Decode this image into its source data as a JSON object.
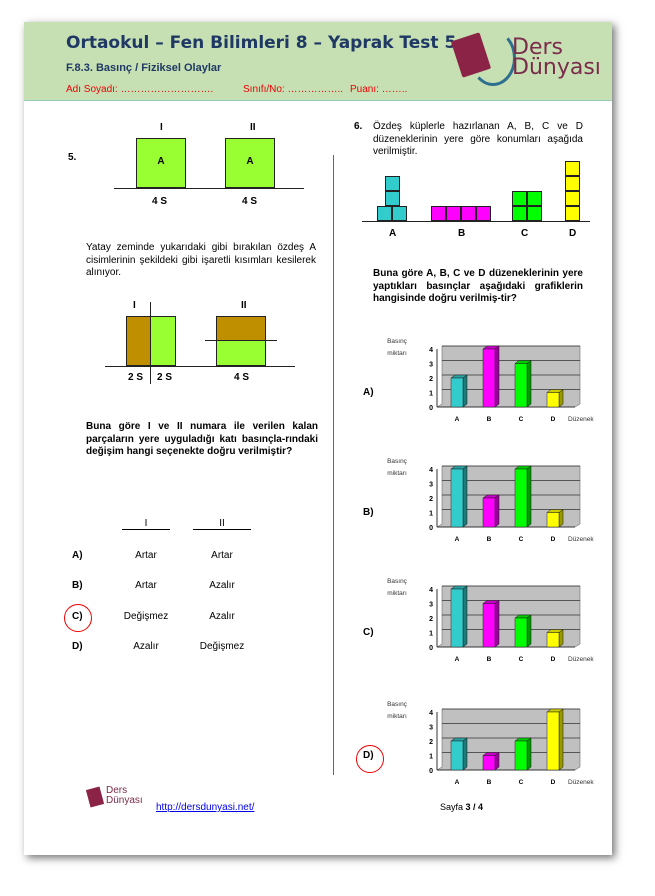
{
  "header": {
    "title": "Ortaokul – Fen Bilimleri 8 – Yaprak Test 5",
    "subtitle": "F.8.3. Basınç / Fiziksel Olaylar",
    "name_field": "Adı Soyadı: ……………………….",
    "class_field": "Sınıfı/No: ……………..",
    "score_field": "Puanı: ……..",
    "logo_line1": "Ders",
    "logo_line2": "Dünyası"
  },
  "q5": {
    "number": "5.",
    "fig1": {
      "label_I": "I",
      "label_II": "II",
      "block": "A",
      "area_I": "4 S",
      "area_II": "4 S"
    },
    "text": "Yatay zeminde yukarıdaki gibi bırakılan özdeş A cisimlerinin şekildeki gibi işaretli kısımları kesilerek alınıyor.",
    "fig2": {
      "label_I": "I",
      "label_II": "II",
      "area_I_left": "2 S",
      "area_I_right": "2 S",
      "area_II": "4 S"
    },
    "question": "Buna göre I ve II numara ile verilen kalan parçaların yere uyguladığı katı basınçla-rındaki değişim hangi seçenekte doğru verilmiştir?",
    "col_I": "I",
    "col_II": "II",
    "options": [
      {
        "letter": "A)",
        "I": "Artar",
        "II": "Artar"
      },
      {
        "letter": "B)",
        "I": "Artar",
        "II": "Azalır"
      },
      {
        "letter": "C)",
        "I": "Değişmez",
        "II": "Azalır"
      },
      {
        "letter": "D)",
        "I": "Azalır",
        "II": "Değişmez"
      }
    ],
    "marked_answer": "C)"
  },
  "q6": {
    "number": "6.",
    "text": "Özdeş küplerle hazırlanan A, B, C ve D düzeneklerinin yere göre konumları aşağıda verilmiştir.",
    "setups": [
      "A",
      "B",
      "C",
      "D"
    ],
    "question": "Buna göre A, B, C ve D düzeneklerinin yere yaptıkları basınçlar aşağıdaki grafiklerin hangisinde doğru verilmiş-tir?",
    "marked_answer": "D)"
  },
  "chart_data": [
    {
      "option": "A)",
      "type": "bar",
      "ylabel": "Basınç miktarı",
      "xlabel": "Düzenek",
      "categories": [
        "A",
        "B",
        "C",
        "D"
      ],
      "values": [
        2,
        4,
        3,
        1
      ],
      "ylim": [
        0,
        4
      ],
      "yticks": [
        "0",
        "1",
        "2",
        "3",
        "4"
      ],
      "grid": true
    },
    {
      "option": "B)",
      "type": "bar",
      "ylabel": "Basınç miktarı",
      "xlabel": "Düzenek",
      "categories": [
        "A",
        "B",
        "C",
        "D"
      ],
      "values": [
        4,
        2,
        4,
        1
      ],
      "ylim": [
        0,
        4
      ],
      "yticks": [
        "0",
        "1",
        "2",
        "3",
        "4"
      ],
      "grid": true
    },
    {
      "option": "C)",
      "type": "bar",
      "ylabel": "Basınç miktarı",
      "xlabel": "Düzenek",
      "categories": [
        "A",
        "B",
        "C",
        "D"
      ],
      "values": [
        4,
        3,
        2,
        1
      ],
      "ylim": [
        0,
        4
      ],
      "yticks": [
        "0",
        "1",
        "2",
        "3",
        "4"
      ],
      "grid": true
    },
    {
      "option": "D)",
      "type": "bar",
      "ylabel": "Basınç miktarı",
      "xlabel": "Düzenek",
      "categories": [
        "A",
        "B",
        "C",
        "D"
      ],
      "values": [
        2,
        1,
        2,
        4
      ],
      "ylim": [
        0,
        4
      ],
      "yticks": [
        "0",
        "1",
        "2",
        "3",
        "4"
      ],
      "grid": true
    }
  ],
  "colors": {
    "A": "#33cccc",
    "B": "#ff00ff",
    "C": "#00ff00",
    "D": "#ffff00",
    "green_block": "#99ff33",
    "cut_part": "#bf8f00",
    "header_bg": "#c6e0b4"
  },
  "footer": {
    "logo_line1": "Ders",
    "logo_line2": "Dünyası",
    "url": "http://dersdunyasi.net/",
    "page_prefix": "Sayfa ",
    "page": "3 / 4"
  }
}
